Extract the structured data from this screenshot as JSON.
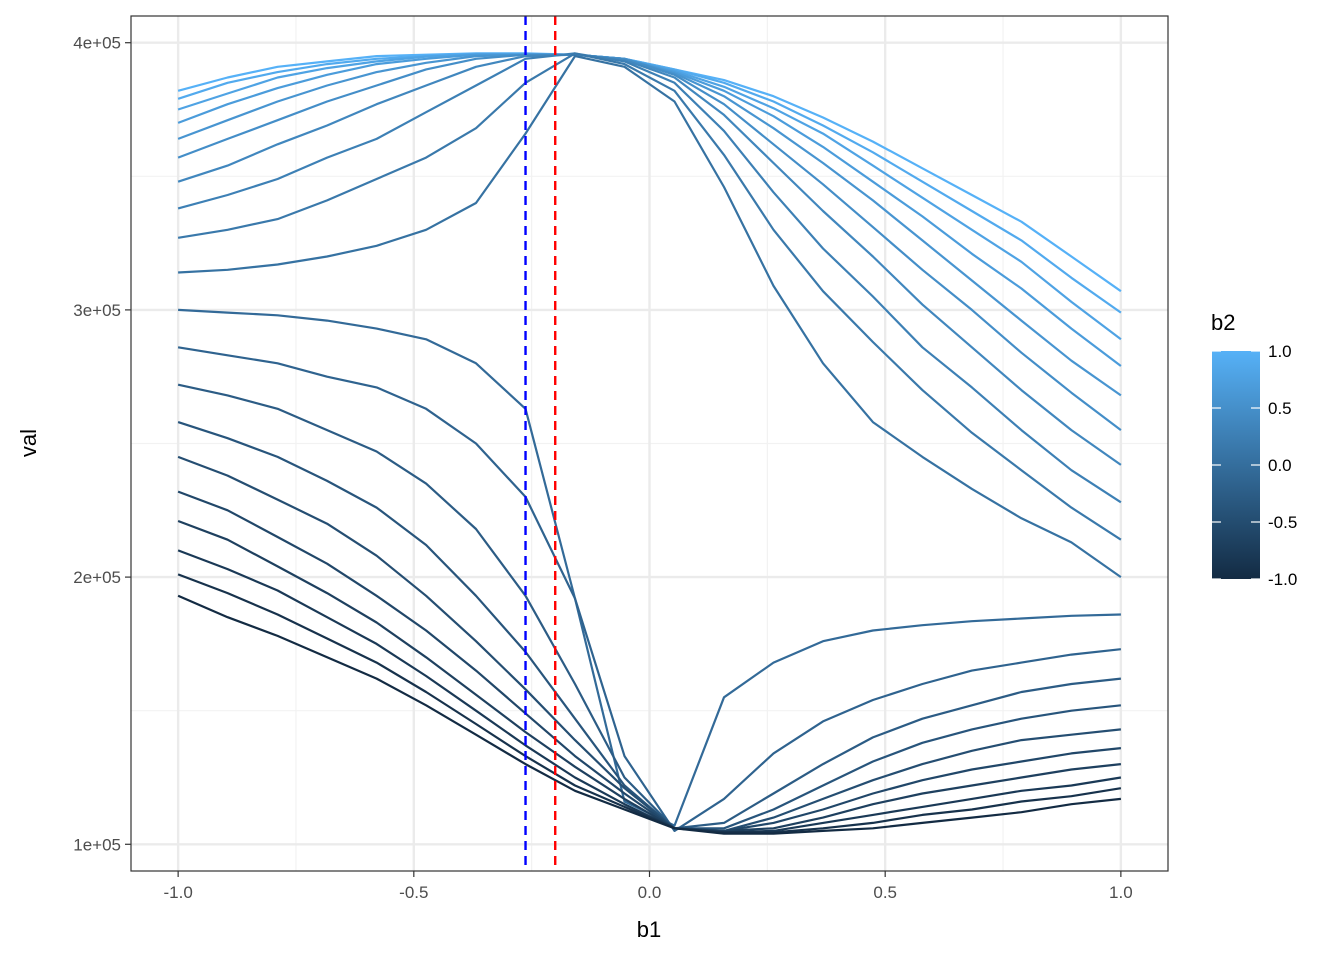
{
  "chart_data": {
    "type": "line",
    "xlabel": "b1",
    "ylabel": "val",
    "xlim": [
      -1.1,
      1.1
    ],
    "ylim": [
      90000,
      410000
    ],
    "x_ticks": [
      -1.0,
      -0.5,
      0.0,
      0.5,
      1.0
    ],
    "x_tick_labels": [
      "-1.0",
      "-0.5",
      "0.0",
      "0.5",
      "1.0"
    ],
    "y_ticks": [
      100000,
      200000,
      300000,
      400000
    ],
    "y_tick_labels": [
      "1e+05",
      "2e+05",
      "3e+05",
      "4e+05"
    ],
    "grid": true,
    "legend": {
      "title": "b2",
      "position": "right",
      "type": "colorbar",
      "range": [
        -1.0,
        1.0
      ],
      "breaks": [
        1.0,
        0.5,
        0.0,
        -0.5,
        -1.0
      ],
      "labels": [
        "1.0",
        "0.5",
        "0.0",
        "-0.5",
        "-1.0"
      ],
      "low_color": "#132B43",
      "high_color": "#56B1F7"
    },
    "vlines": [
      {
        "x": -0.263,
        "color": "#0000FF",
        "style": "dashed"
      },
      {
        "x": -0.2,
        "color": "#FF0000",
        "style": "dashed"
      }
    ],
    "x": [
      -1.0,
      -0.895,
      -0.789,
      -0.684,
      -0.579,
      -0.474,
      -0.368,
      -0.263,
      -0.158,
      -0.053,
      0.053,
      0.158,
      0.263,
      0.368,
      0.474,
      0.579,
      0.684,
      0.789,
      0.895,
      1.0
    ],
    "series": [
      {
        "b2": 1.0,
        "values": [
          382000,
          387000,
          391000,
          393000,
          395000,
          395500,
          396000,
          396000,
          395500,
          394000,
          390000,
          386000,
          380000,
          372000,
          363000,
          353000,
          343000,
          333000,
          320000,
          307000
        ]
      },
      {
        "b2": 0.895,
        "values": [
          379000,
          385000,
          389000,
          392000,
          394000,
          395000,
          395800,
          395800,
          395500,
          394000,
          390000,
          385000,
          378000,
          369000,
          359000,
          348000,
          337000,
          326000,
          312000,
          299000
        ]
      },
      {
        "b2": 0.789,
        "values": [
          375000,
          381000,
          387000,
          390500,
          393000,
          394800,
          395600,
          395600,
          395500,
          394000,
          389500,
          383500,
          375500,
          366000,
          354000,
          342000,
          330000,
          318000,
          303000,
          289000
        ]
      },
      {
        "b2": 0.684,
        "values": [
          370000,
          377000,
          383000,
          388000,
          392000,
          394000,
          395500,
          395500,
          395500,
          394000,
          389000,
          382000,
          372500,
          361000,
          348000,
          335000,
          321000,
          308000,
          293000,
          279000
        ]
      },
      {
        "b2": 0.579,
        "values": [
          364000,
          371000,
          378000,
          384000,
          389000,
          392500,
          395000,
          395500,
          395500,
          394000,
          388500,
          380000,
          368000,
          355000,
          341000,
          326000,
          311000,
          296000,
          281000,
          268000
        ]
      },
      {
        "b2": 0.474,
        "values": [
          357000,
          364000,
          371000,
          378000,
          384000,
          390000,
          394000,
          395500,
          395500,
          394000,
          388000,
          377000,
          362000,
          347000,
          331000,
          315000,
          300000,
          284000,
          269000,
          255000
        ]
      },
      {
        "b2": 0.368,
        "values": [
          348000,
          354000,
          362000,
          369000,
          377000,
          384000,
          391000,
          395000,
          395500,
          393500,
          387000,
          373000,
          355000,
          337000,
          320000,
          302000,
          286000,
          270000,
          255000,
          242000
        ]
      },
      {
        "b2": 0.263,
        "values": [
          338000,
          343000,
          349000,
          357000,
          364000,
          374000,
          384000,
          394000,
          396000,
          393000,
          385000,
          367000,
          344000,
          323000,
          305000,
          286000,
          271000,
          255000,
          240000,
          228000
        ]
      },
      {
        "b2": 0.158,
        "values": [
          327000,
          330000,
          334000,
          341000,
          349000,
          357000,
          368000,
          385000,
          396000,
          392000,
          382000,
          358000,
          330000,
          307000,
          288000,
          270000,
          254000,
          240000,
          226000,
          214000
        ]
      },
      {
        "b2": 0.053,
        "values": [
          314000,
          315000,
          317000,
          320000,
          324000,
          330000,
          340000,
          366000,
          395000,
          391000,
          378000,
          346000,
          309000,
          280000,
          258000,
          245000,
          233000,
          222000,
          213000,
          200000
        ]
      },
      {
        "b2": -0.053,
        "values": [
          300000,
          299000,
          298000,
          296000,
          293000,
          289000,
          280000,
          263000,
          192000,
          116000,
          107000,
          155000,
          168000,
          176000,
          180000,
          182000,
          183500,
          184500,
          185500,
          186000
        ]
      },
      {
        "b2": -0.158,
        "values": [
          286000,
          283000,
          280000,
          275000,
          271000,
          263000,
          250000,
          230000,
          192000,
          133000,
          105000,
          117000,
          134000,
          146000,
          154000,
          160000,
          165000,
          168000,
          171000,
          173000
        ]
      },
      {
        "b2": -0.263,
        "values": [
          272000,
          268000,
          263000,
          255000,
          247000,
          235000,
          218000,
          193000,
          160000,
          125000,
          106000,
          108000,
          119000,
          130000,
          140000,
          147000,
          152000,
          157000,
          160000,
          162000
        ]
      },
      {
        "b2": -0.368,
        "values": [
          258000,
          252000,
          245000,
          236000,
          226000,
          212000,
          193000,
          172000,
          147000,
          122000,
          106000,
          106000,
          113000,
          122000,
          131000,
          138000,
          143000,
          147000,
          150000,
          152000
        ]
      },
      {
        "b2": -0.474,
        "values": [
          245000,
          238000,
          229000,
          220000,
          208000,
          193000,
          176000,
          158000,
          139000,
          121000,
          106000,
          105000,
          110000,
          117000,
          124000,
          130000,
          135000,
          139000,
          141000,
          143000
        ]
      },
      {
        "b2": -0.579,
        "values": [
          232000,
          225000,
          215000,
          205000,
          193000,
          180000,
          165000,
          149000,
          133000,
          119000,
          106000,
          105000,
          108000,
          113000,
          119000,
          124000,
          128000,
          131000,
          134000,
          136000
        ]
      },
      {
        "b2": -0.684,
        "values": [
          221000,
          214000,
          204000,
          194000,
          183000,
          170000,
          156000,
          142000,
          129000,
          117000,
          106000,
          105000,
          106000,
          110000,
          115000,
          119000,
          122000,
          125000,
          128000,
          130000
        ]
      },
      {
        "b2": -0.789,
        "values": [
          210000,
          203000,
          195000,
          185000,
          175000,
          163000,
          150000,
          137000,
          125000,
          115000,
          106000,
          104500,
          105000,
          108000,
          111000,
          114000,
          117000,
          120000,
          122000,
          125000
        ]
      },
      {
        "b2": -0.895,
        "values": [
          201000,
          194000,
          186000,
          177000,
          168000,
          157000,
          145000,
          133000,
          122000,
          114000,
          106000,
          104500,
          104500,
          106000,
          108000,
          111000,
          113000,
          116000,
          118000,
          121000
        ]
      },
      {
        "b2": -1.0,
        "values": [
          193000,
          185000,
          178000,
          170000,
          162000,
          152000,
          141000,
          130000,
          120000,
          113000,
          106000,
          104000,
          104000,
          105000,
          106000,
          108000,
          110000,
          112000,
          115000,
          117000
        ]
      }
    ]
  }
}
